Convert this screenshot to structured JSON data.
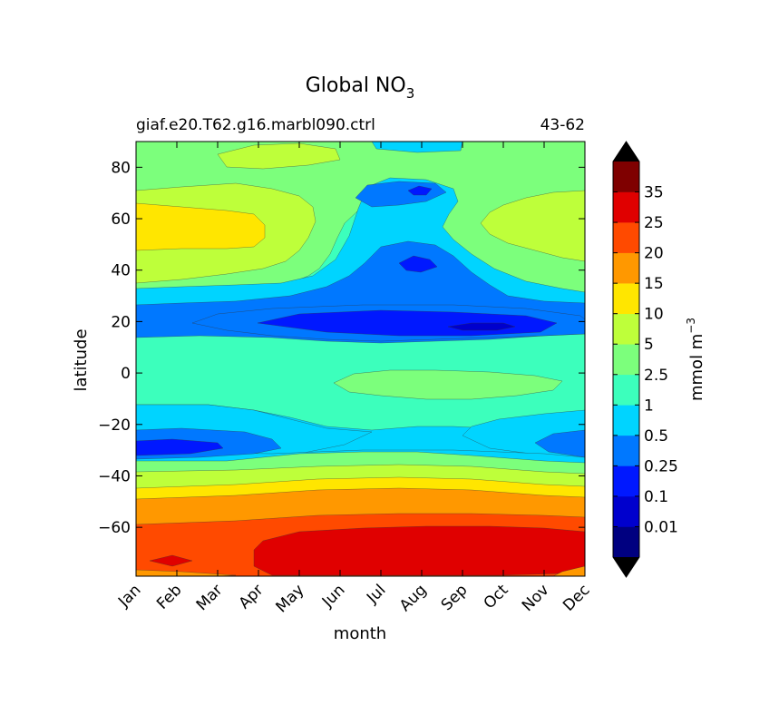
{
  "chart_data": {
    "type": "heatmap",
    "title": "Global NO",
    "title_subscript": "3",
    "subtitle_left": "giaf.e20.T62.g16.marbl090.ctrl",
    "subtitle_right": "43-62",
    "xlabel": "month",
    "ylabel": "latitude",
    "x_ticks": [
      "Jan",
      "Feb",
      "Mar",
      "Apr",
      "May",
      "Jun",
      "Jul",
      "Aug",
      "Sep",
      "Oct",
      "Nov",
      "Dec"
    ],
    "xlim": [
      1,
      12
    ],
    "y_ticks": [
      80,
      60,
      40,
      20,
      0,
      -20,
      -40,
      -60
    ],
    "y_tick_labels": [
      "80",
      "60",
      "40",
      "20",
      "0",
      "−20",
      "−40",
      "−60"
    ],
    "ylim": [
      -79,
      90
    ],
    "colorbar": {
      "label": "mmol m",
      "label_superscript": "−3",
      "levels": [
        "0.01",
        "0.1",
        "0.25",
        "0.5",
        "1",
        "2.5",
        "5",
        "10",
        "15",
        "20",
        "25",
        "35"
      ],
      "colors": [
        "#000080",
        "#0000cd",
        "#0018ff",
        "#0078ff",
        "#00d4ff",
        "#3cffbc",
        "#7cff7c",
        "#beff3a",
        "#ffe600",
        "#ff9800",
        "#ff4a00",
        "#e00000",
        "#7f0000"
      ],
      "extend_low_color": "#000000",
      "extend_high_color": "#000000"
    },
    "field_bands": [
      {
        "lat": [
          -79,
          -77
        ],
        "level": "20-25"
      },
      {
        "lat": [
          -77,
          -62
        ],
        "level": "25-35",
        "note": "peaks May–Dec, 20-25 Jan–Apr"
      },
      {
        "lat": [
          -62,
          -56
        ],
        "level": "20-25"
      },
      {
        "lat": [
          -56,
          -49
        ],
        "level": "15-20"
      },
      {
        "lat": [
          -49,
          -45
        ],
        "level": "10-15"
      },
      {
        "lat": [
          -45,
          -38
        ],
        "level": "5-10"
      },
      {
        "lat": [
          -38,
          -35
        ],
        "level": "2.5-5"
      },
      {
        "lat": [
          -35,
          -12
        ],
        "level": "0.5-1",
        "note": "0.25-0.5 cores near -28 in Jan–Apr and Oct–Dec"
      },
      {
        "lat": [
          -12,
          14
        ],
        "level": "1-2.5",
        "note": "2.5-5 lens near -5 in Jul–Oct"
      },
      {
        "lat": [
          14,
          25
        ],
        "level": "0.25-0.5",
        "note": "0.1-0.25 core May–Oct"
      },
      {
        "lat": [
          25,
          32
        ],
        "level": "0.5-1"
      },
      {
        "lat": [
          32,
          45
        ],
        "level": "2.5-5",
        "note": "0.25-1 in Jun–Sep"
      },
      {
        "lat": [
          45,
          70
        ],
        "level": "5-10",
        "note": "10-15 Jan–Mar near 50-63"
      },
      {
        "lat": [
          70,
          90
        ],
        "level": "2.5-5",
        "note": "5-10 patch near 85 in Apr–Jun; 0.1-0.5 core near 72 in Aug"
      }
    ]
  }
}
